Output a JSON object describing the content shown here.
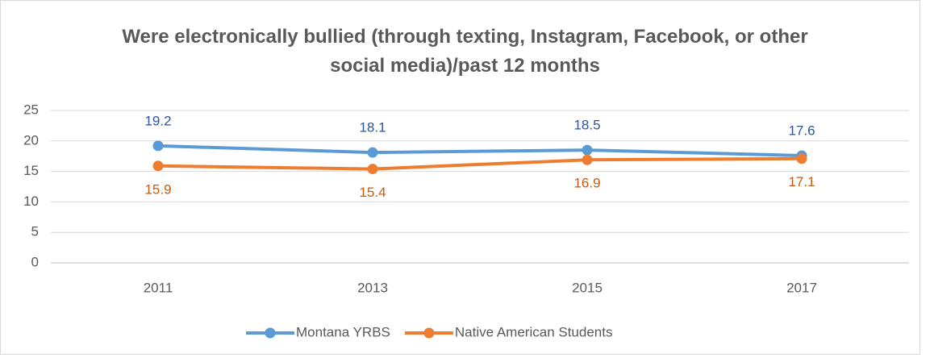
{
  "chart_data": {
    "type": "line",
    "title": "Were electronically bullied (through texting, Instagram, Facebook, or other social media)/past 12 months",
    "categories": [
      "2011",
      "2013",
      "2015",
      "2017"
    ],
    "series": [
      {
        "name": "Montana YRBS",
        "color": "#5b9bd5",
        "label_color": "#2f5597",
        "values": [
          19.2,
          18.1,
          18.5,
          17.6
        ]
      },
      {
        "name": "Native American Students",
        "color": "#ed7d31",
        "label_color": "#c55a11",
        "values": [
          15.9,
          15.4,
          16.9,
          17.1
        ]
      }
    ],
    "ylim": [
      0,
      25
    ],
    "yticks": [
      0,
      5,
      10,
      15,
      20,
      25
    ],
    "grid": true,
    "legend": "bottom"
  }
}
